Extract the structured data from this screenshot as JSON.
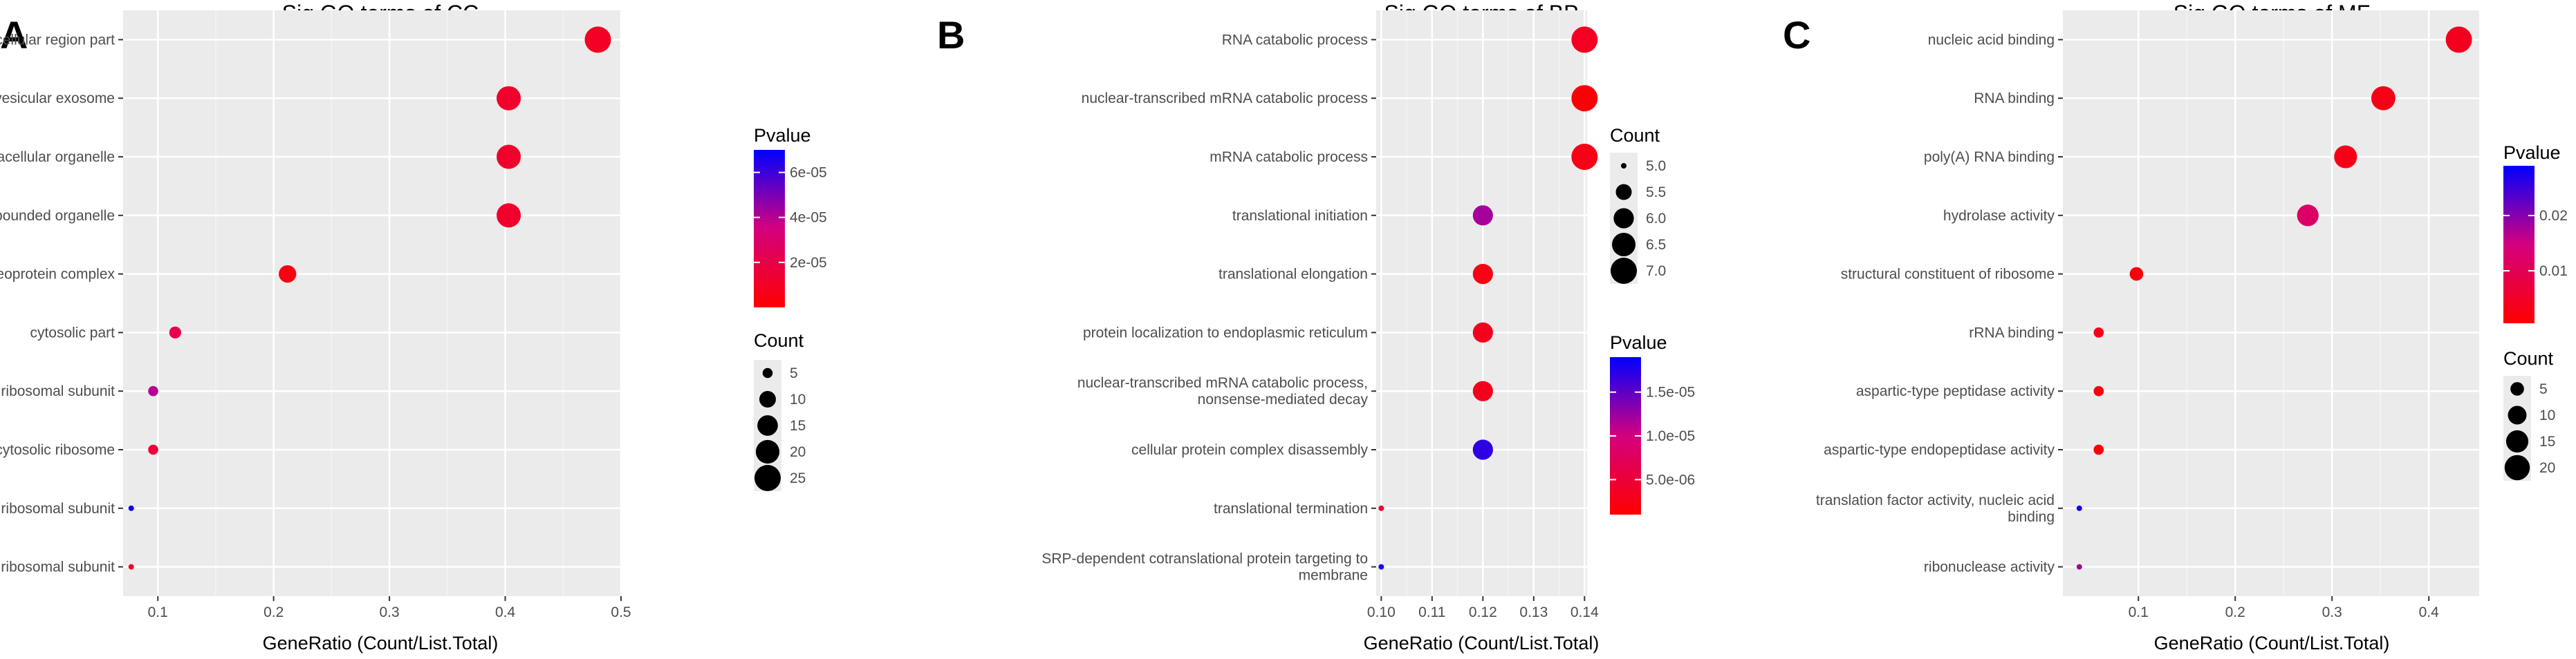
{
  "colors": {
    "low_p": "#FF0000",
    "high_p": "#0000FF",
    "panel_bg": "#EBEBEB",
    "grid": "#FFFFFF",
    "text": "#4D4D4D"
  },
  "chart_data": [
    {
      "type": "scatter",
      "panel_label": "A",
      "title": "Sig GO terms of CC",
      "xlabel": "GeneRatio (Count/List.Total)",
      "xlim": [
        0.07,
        0.5
      ],
      "xticks": [
        0.1,
        0.2,
        0.3,
        0.4,
        0.5
      ],
      "xtick_labels": [
        "0.1",
        "0.2",
        "0.3",
        "0.4",
        "0.5"
      ],
      "terms": [
        "extracellular region part",
        "extracellular vesicular exosome",
        "extracellular organelle",
        "extracellular membrane-bounded organelle",
        "ribonucleoprotein complex",
        "cytosolic part",
        "ribosomal subunit",
        "cytosolic ribosome",
        "large ribosomal subunit",
        "cytosolic large ribosomal subunit"
      ],
      "gene_ratio": [
        0.48,
        0.403,
        0.403,
        0.403,
        0.212,
        0.115,
        0.096,
        0.096,
        0.077,
        0.077
      ],
      "count": [
        25,
        21,
        21,
        21,
        11,
        6,
        5,
        5,
        4,
        4
      ],
      "pvalue": [
        1e-05,
        1.2e-05,
        1.2e-05,
        1.2e-05,
        5e-06,
        2e-05,
        4e-05,
        1.5e-05,
        6.8e-05,
        1e-05
      ],
      "color_legend": {
        "title": "Pvalue",
        "min": 0,
        "max": 7e-05,
        "ticks": [
          2e-05,
          4e-05,
          6e-05
        ],
        "labels": [
          "2e-05",
          "4e-05",
          "6e-05"
        ]
      },
      "size_legend": {
        "title": "Count",
        "values": [
          5,
          10,
          15,
          20,
          25
        ],
        "labels": [
          "5",
          "10",
          "15",
          "20",
          "25"
        ],
        "size_range": [
          4,
          25
        ]
      }
    },
    {
      "type": "scatter",
      "panel_label": "B",
      "title": "Sig GO terms of BP",
      "xlabel": "GeneRatio (Count/List.Total)",
      "xlim": [
        0.099,
        0.1405
      ],
      "xticks": [
        0.1,
        0.11,
        0.12,
        0.13,
        0.14
      ],
      "xtick_labels": [
        "0.10",
        "0.11",
        "0.12",
        "0.13",
        "0.14"
      ],
      "terms": [
        "RNA catabolic process",
        "nuclear-transcribed mRNA catabolic process",
        "mRNA catabolic process",
        "translational initiation",
        "translational elongation",
        "protein localization to endoplasmic reticulum",
        "nuclear-transcribed mRNA catabolic process, nonsense-mediated decay",
        "cellular protein complex disassembly",
        "translational termination",
        "SRP-dependent cotranslational protein targeting to membrane"
      ],
      "gene_ratio": [
        0.14,
        0.14,
        0.14,
        0.12,
        0.12,
        0.12,
        0.12,
        0.12,
        0.1,
        0.1
      ],
      "count": [
        7,
        7,
        7,
        6,
        6,
        6,
        6,
        6,
        5,
        5
      ],
      "pvalue": [
        3.5e-06,
        1.5e-06,
        2.5e-06,
        1.2e-05,
        2.5e-06,
        3e-06,
        3e-06,
        1.7e-05,
        4.5e-06,
        1.8e-05
      ],
      "color_legend": {
        "title": "Pvalue",
        "min": 1e-06,
        "max": 1.9e-05,
        "ticks": [
          5e-06,
          1e-05,
          1.5e-05
        ],
        "labels": [
          "5.0e-06",
          "1.0e-05",
          "1.5e-05"
        ]
      },
      "size_legend": {
        "title": "Count",
        "values": [
          5.0,
          5.5,
          6.0,
          6.5,
          7.0
        ],
        "labels": [
          "5.0",
          "5.5",
          "6.0",
          "6.5",
          "7.0"
        ],
        "size_range": [
          5,
          7
        ]
      }
    },
    {
      "type": "scatter",
      "panel_label": "C",
      "title": "Sig GO terms of MF",
      "xlabel": "GeneRatio (Count/List.Total)",
      "xlim": [
        0.022,
        0.452
      ],
      "xticks": [
        0.1,
        0.2,
        0.3,
        0.4
      ],
      "xtick_labels": [
        "0.1",
        "0.2",
        "0.3",
        "0.4"
      ],
      "terms": [
        "nucleic acid binding",
        "RNA binding",
        "poly(A) RNA binding",
        "hydrolase activity",
        "structural constituent of ribosome",
        "rRNA binding",
        "aspartic-type peptidase activity",
        "aspartic-type endopeptidase activity",
        "translation factor activity, nucleic acid binding",
        "ribonuclease activity"
      ],
      "gene_ratio": [
        0.431,
        0.353,
        0.314,
        0.275,
        0.098,
        0.059,
        0.059,
        0.059,
        0.039,
        0.039
      ],
      "count": [
        22,
        18,
        16,
        14,
        5,
        3,
        3,
        3,
        2,
        2
      ],
      "pvalue": [
        0.004,
        0.003,
        0.003,
        0.012,
        0.002,
        0.003,
        0.002,
        0.002,
        0.028,
        0.018
      ],
      "color_legend": {
        "title": "Pvalue",
        "min": 0.0005,
        "max": 0.029,
        "ticks": [
          0.01,
          0.02
        ],
        "labels": [
          "0.01",
          "0.02"
        ]
      },
      "size_legend": {
        "title": "Count",
        "values": [
          5,
          10,
          15,
          20
        ],
        "labels": [
          "5",
          "10",
          "15",
          "20"
        ],
        "size_range": [
          2,
          22
        ]
      }
    }
  ]
}
